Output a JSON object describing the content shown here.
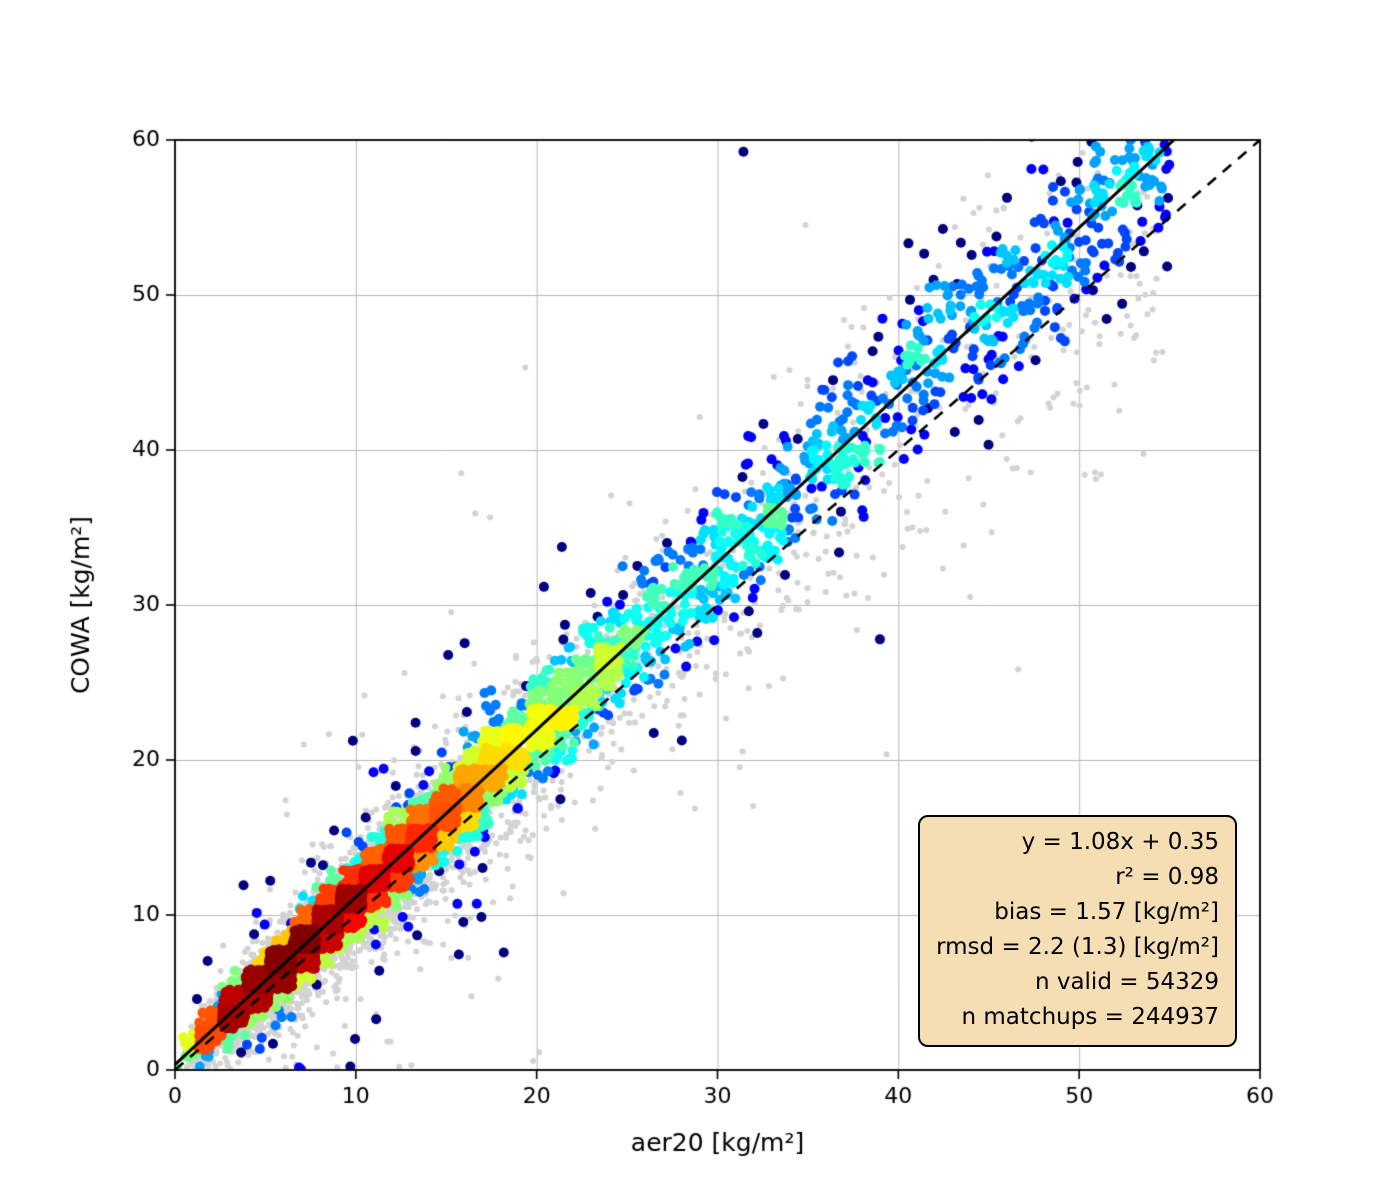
{
  "figure": {
    "background": "#ffffff"
  },
  "chart_data": {
    "type": "scatter",
    "title": "",
    "xlabel": "aer20 [kg/m²]",
    "ylabel": "COWA [kg/m²]",
    "xlim": [
      0,
      60
    ],
    "ylim": [
      0,
      60
    ],
    "xticks": [
      0,
      10,
      20,
      30,
      40,
      50,
      60
    ],
    "yticks": [
      0,
      10,
      20,
      30,
      40,
      50,
      60
    ],
    "grid": true,
    "grid_color": "#b8b8b8",
    "spine_color": "#000000",
    "fit_line": {
      "label": "y = 1.08x + 0.35",
      "slope": 1.08,
      "intercept": 0.35,
      "color": "#000000",
      "style": "solid"
    },
    "identity_line": {
      "slope": 1.0,
      "intercept": 0.0,
      "color": "#000000",
      "style": "dashed"
    },
    "series": [
      {
        "name": "all matchups",
        "n": 244937,
        "marker_color": "#d3d3d3",
        "role": "background-cloud",
        "color_by": "none"
      },
      {
        "name": "valid retrievals",
        "n": 54329,
        "colormap": "jet",
        "role": "density-scatter",
        "color_by": "point density",
        "density_low_color": "#00008b",
        "density_high_color": "#ff0000"
      }
    ],
    "stats": {
      "equation": "y = 1.08x + 0.35",
      "r2": 0.98,
      "bias": 1.57,
      "bias_units": "kg/m²",
      "rmsd": 2.2,
      "rmsd_robust": 1.3,
      "rmsd_units": "kg/m²",
      "n_valid": 54329,
      "n_matchups": 244937
    },
    "stats_box": {
      "bg": "#f5deb3",
      "border": "#000000",
      "lines": [
        "y = 1.08x + 0.35",
        "r² = 0.98",
        "bias = 1.57 [kg/m²]",
        "rmsd = 2.2 (1.3) [kg/m²]",
        "n valid = 54329",
        "n matchups = 244937"
      ]
    },
    "render": {
      "seed": 20240613,
      "n_background": 3600,
      "n_foreground": 6500,
      "bg_radius": 3.0,
      "fg_radius": 5.0
    }
  }
}
